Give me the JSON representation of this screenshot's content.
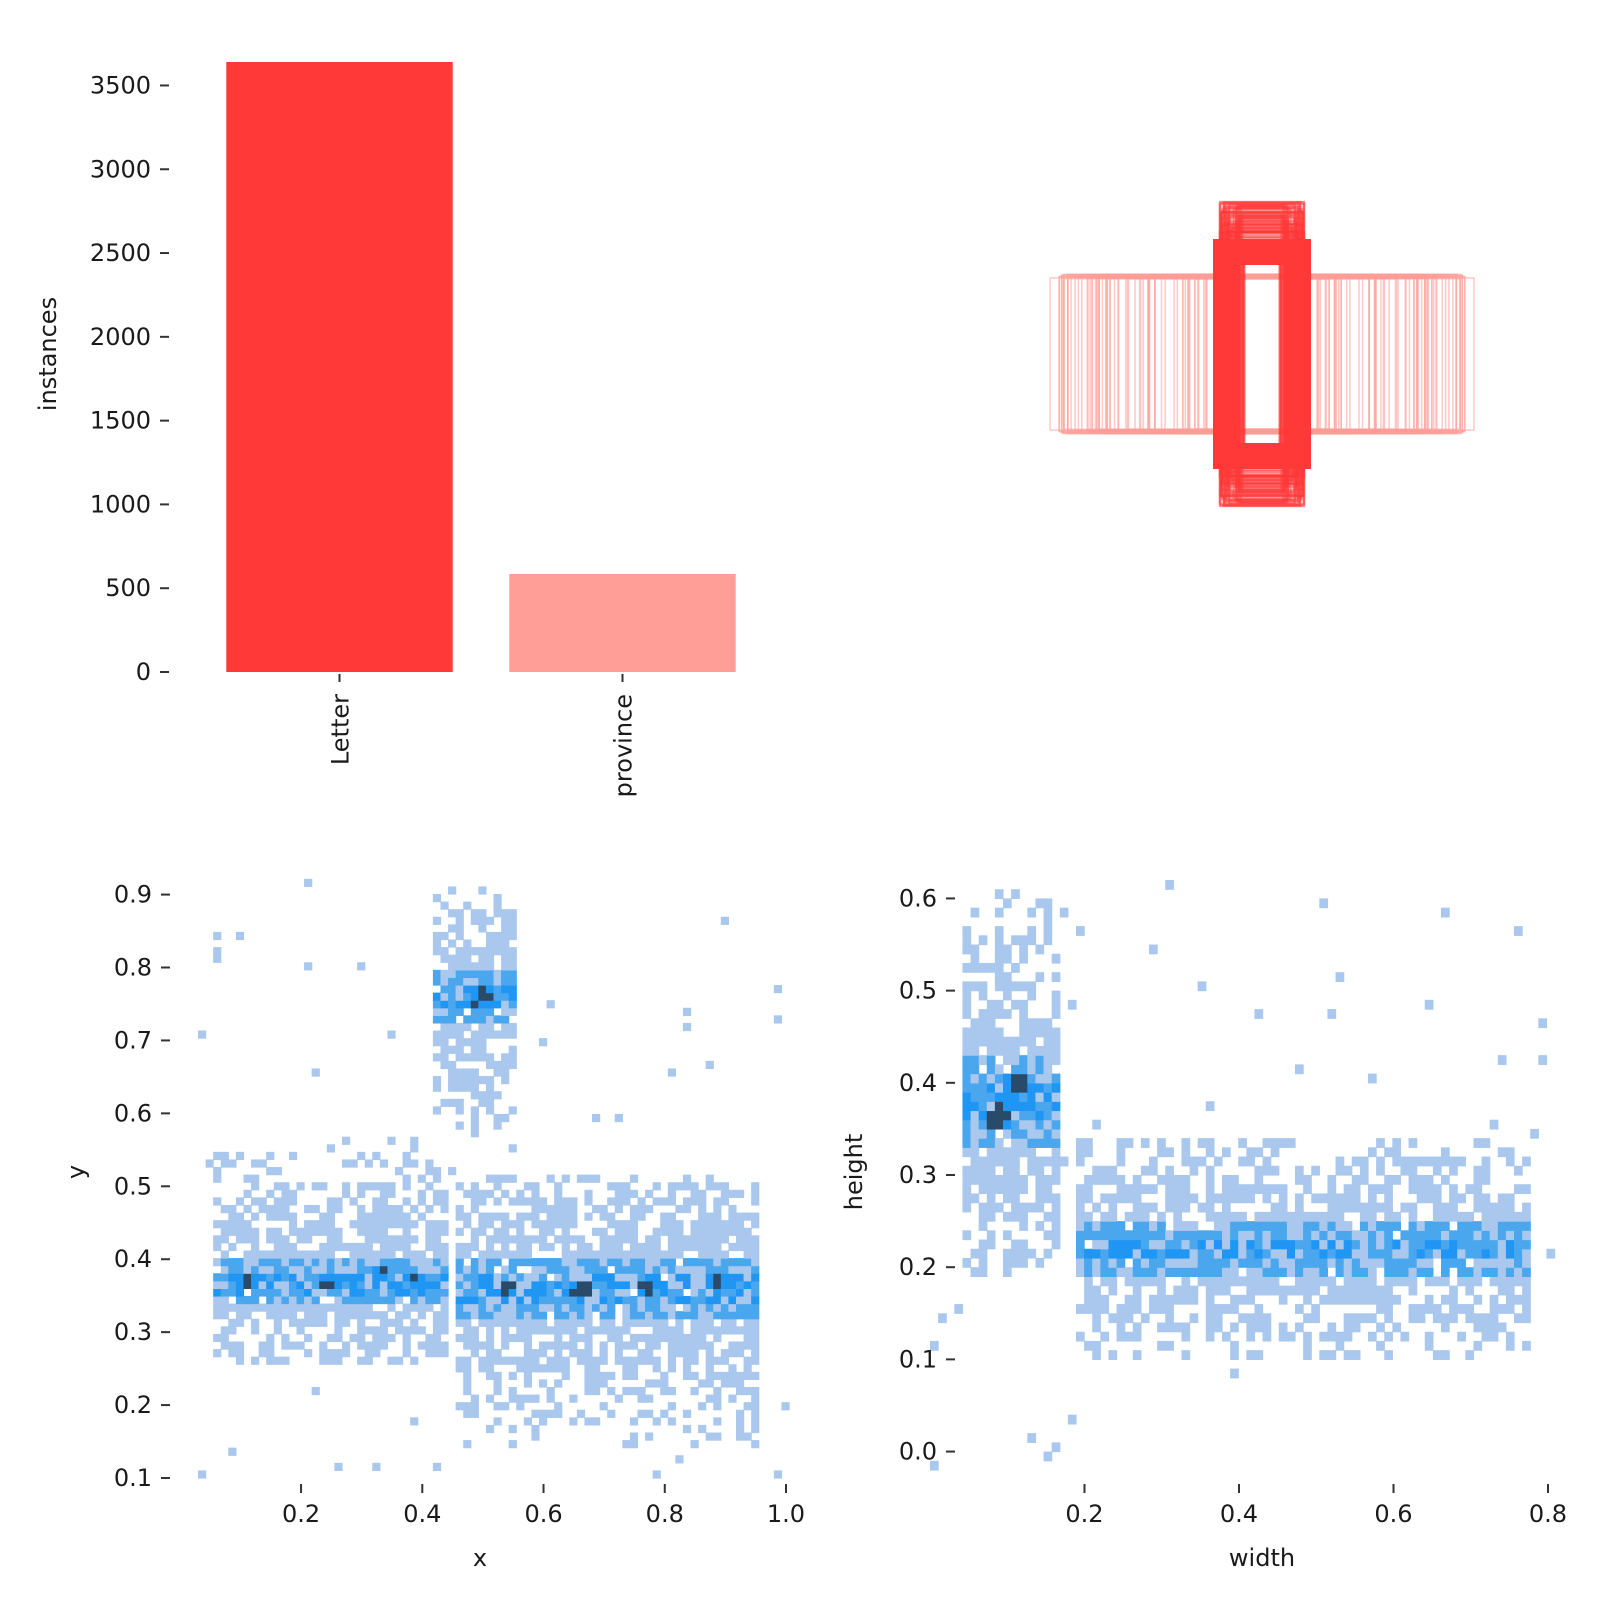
{
  "colors": {
    "bar_primary": "#ff3838",
    "bar_secondary": "#ff9d97",
    "box_outline": "#ff3838",
    "hist_light": "#aac8ee",
    "hist_mid": "#4aa7ee",
    "hist_strong": "#1f96f3",
    "hist_dark": "#2a4a6a"
  },
  "chart_data": [
    {
      "type": "bar",
      "categories": [
        "Letter",
        "province"
      ],
      "values": [
        3640,
        585
      ],
      "xlabel": "",
      "ylabel": "instances",
      "ylim": [
        0,
        3640
      ],
      "yticks": [
        0,
        500,
        1000,
        1500,
        2000,
        2500,
        3000,
        3500
      ],
      "ytick_labels": [
        "0",
        "500",
        "1000",
        "1500",
        "2000",
        "2500",
        "3000",
        "3500"
      ],
      "grid": false
    },
    {
      "type": "scatter",
      "description_kind": "overlaid bounding boxes (normalized width/height, centered)",
      "groups": [
        {
          "class": "Letter",
          "width_range": [
            0.07,
            0.17
          ],
          "height_range": [
            0.2,
            0.6
          ]
        },
        {
          "class": "province",
          "width_range": [
            0.22,
            0.85
          ],
          "height_range": [
            0.3,
            0.32
          ]
        }
      ],
      "xlabel": "",
      "ylabel": "",
      "grid": false
    },
    {
      "type": "heatmap",
      "xlabel": "x",
      "ylabel": "y",
      "xlim": [
        0.03,
        1.0
      ],
      "ylim": [
        0.1,
        0.92
      ],
      "xticks": [
        0.2,
        0.4,
        0.6,
        0.8,
        1.0
      ],
      "xtick_labels": [
        "0.2",
        "0.4",
        "0.6",
        "0.8",
        "1.0"
      ],
      "yticks": [
        0.1,
        0.2,
        0.3,
        0.4,
        0.5,
        0.6,
        0.7,
        0.8,
        0.9
      ],
      "ytick_labels": [
        "0.1",
        "0.2",
        "0.3",
        "0.4",
        "0.5",
        "0.6",
        "0.7",
        "0.8",
        "0.9"
      ],
      "clusters": [
        {
          "x_range": [
            0.06,
            0.44
          ],
          "y_range": [
            0.26,
            0.57
          ],
          "peak_y": 0.37
        },
        {
          "x_range": [
            0.45,
            0.96
          ],
          "y_range": [
            0.14,
            0.52
          ],
          "peak_y": 0.36
        },
        {
          "x_range": [
            0.42,
            0.55
          ],
          "y_range": [
            0.57,
            0.91
          ],
          "peak_y": 0.76
        }
      ],
      "peaks": [
        {
          "x": 0.11,
          "y": 0.37
        },
        {
          "x": 0.24,
          "y": 0.37
        },
        {
          "x": 0.33,
          "y": 0.38
        },
        {
          "x": 0.39,
          "y": 0.37
        },
        {
          "x": 0.5,
          "y": 0.76
        },
        {
          "x": 0.54,
          "y": 0.36
        },
        {
          "x": 0.66,
          "y": 0.36
        },
        {
          "x": 0.77,
          "y": 0.36
        },
        {
          "x": 0.89,
          "y": 0.37
        }
      ],
      "grid": false
    },
    {
      "type": "heatmap",
      "xlabel": "width",
      "ylabel": "height",
      "xlim": [
        0.0,
        0.8
      ],
      "ylim": [
        -0.02,
        0.62
      ],
      "xticks": [
        0.2,
        0.4,
        0.6,
        0.8
      ],
      "xtick_labels": [
        "0.2",
        "0.4",
        "0.6",
        "0.8"
      ],
      "yticks": [
        0.0,
        0.1,
        0.2,
        0.3,
        0.4,
        0.5,
        0.6
      ],
      "ytick_labels": [
        "0.0",
        "0.1",
        "0.2",
        "0.3",
        "0.4",
        "0.5",
        "0.6"
      ],
      "clusters": [
        {
          "x_range": [
            0.04,
            0.17
          ],
          "y_range": [
            0.19,
            0.61
          ],
          "peak": {
            "x": 0.1,
            "y": 0.38
          }
        },
        {
          "x_range": [
            0.19,
            0.78
          ],
          "y_range": [
            0.1,
            0.34
          ],
          "peak": {
            "x": 0.67,
            "y": 0.22
          }
        }
      ],
      "grid": false
    }
  ]
}
